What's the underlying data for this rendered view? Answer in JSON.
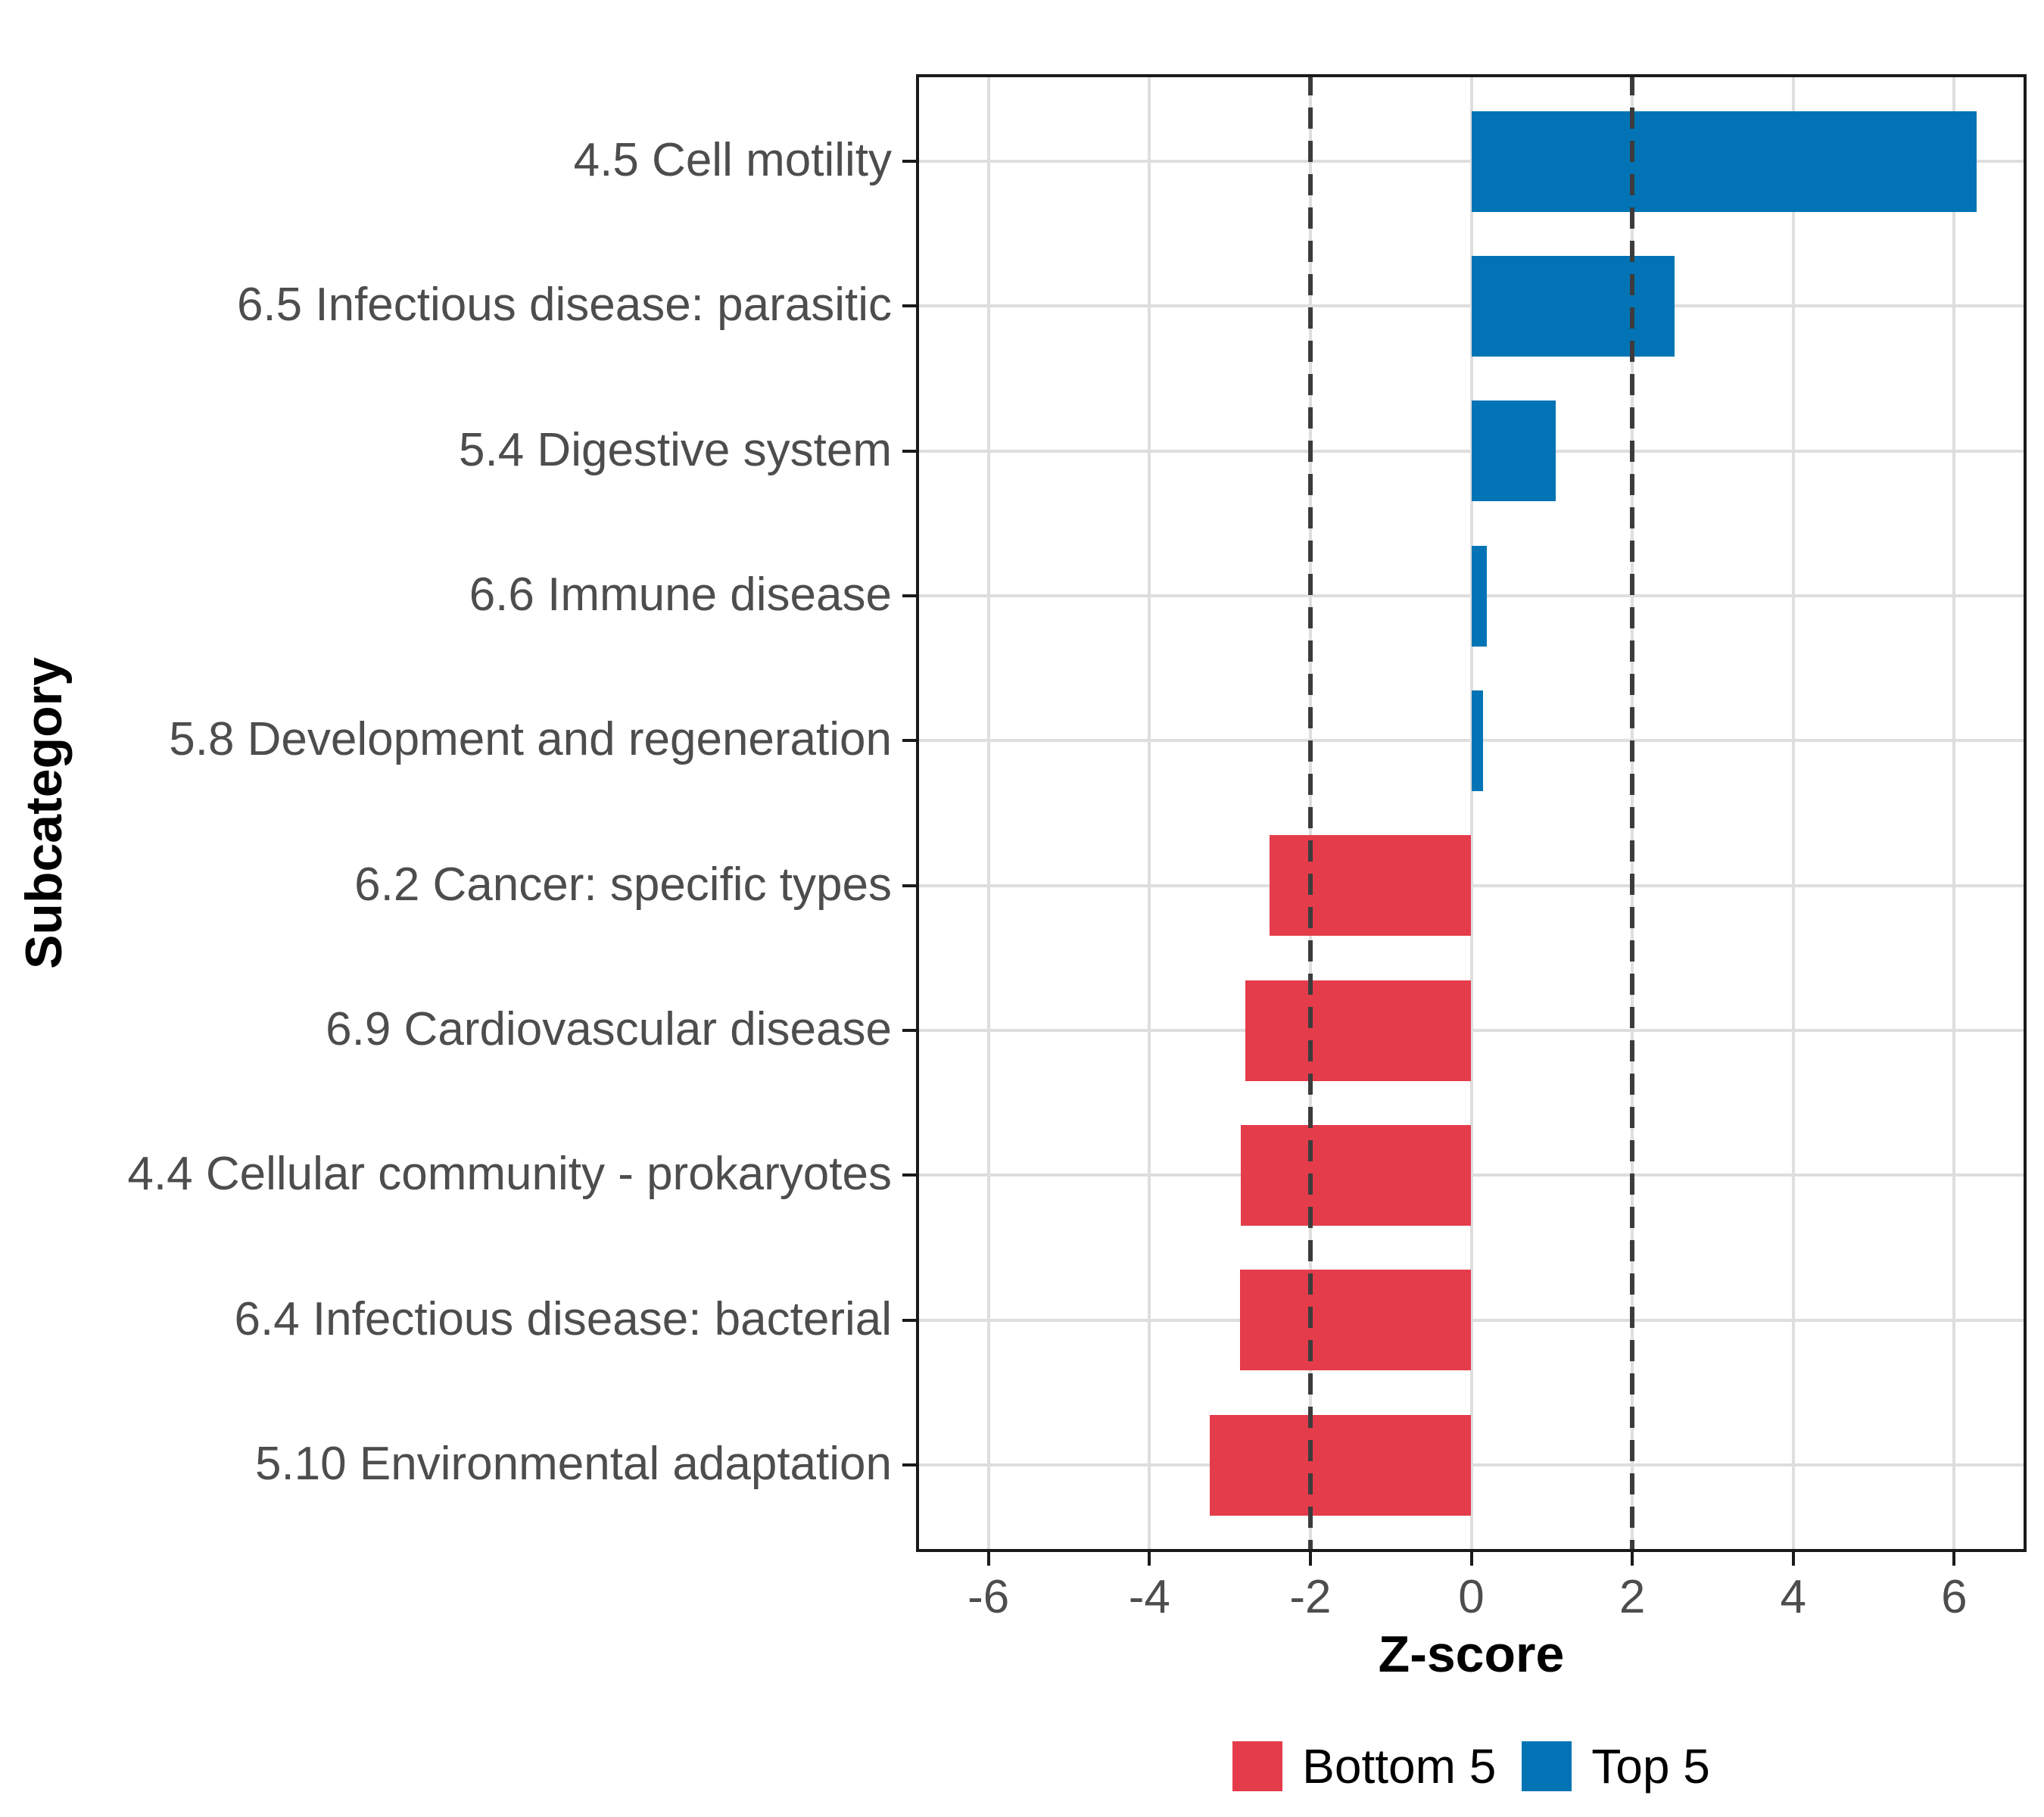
{
  "chart_data": {
    "type": "bar",
    "orientation": "horizontal",
    "title": "",
    "xlabel": "Z-score",
    "ylabel": "Subcategory",
    "xlim": [
      -6.9,
      6.9
    ],
    "x_ticks": [
      -6,
      -4,
      -2,
      0,
      2,
      4,
      6
    ],
    "grid": true,
    "reference_lines": {
      "values": [
        -2,
        2
      ],
      "style": "dashed",
      "color": "#3c3c3c"
    },
    "categories": [
      "4.5 Cell motility",
      "6.5 Infectious disease: parasitic",
      "5.4 Digestive system",
      "6.6 Immune disease",
      "5.8 Development and regeneration",
      "6.2 Cancer: specific types",
      "6.9 Cardiovascular disease",
      "4.4 Cellular community - prokaryotes",
      "6.4 Infectious disease: bacterial",
      "5.10 Environmental adaptation"
    ],
    "values": [
      6.28,
      2.53,
      1.05,
      0.19,
      0.15,
      -2.51,
      -2.81,
      -2.86,
      -2.87,
      -3.25
    ],
    "groups": [
      "Top 5",
      "Top 5",
      "Top 5",
      "Top 5",
      "Top 5",
      "Bottom 5",
      "Bottom 5",
      "Bottom 5",
      "Bottom 5",
      "Bottom 5"
    ],
    "colors": {
      "Top 5": "#0274b5",
      "Bottom 5": "#e53c4b"
    },
    "legend": {
      "position": "bottom",
      "items": [
        {
          "label": "Bottom 5",
          "color": "#e53c4b"
        },
        {
          "label": "Top 5",
          "color": "#0274b5"
        }
      ]
    },
    "style": {
      "gridline_color": "#dedede",
      "axis_text_color": "#4d4d4d",
      "axis_line_color": "#1a1a1a",
      "background": "#ffffff"
    }
  }
}
